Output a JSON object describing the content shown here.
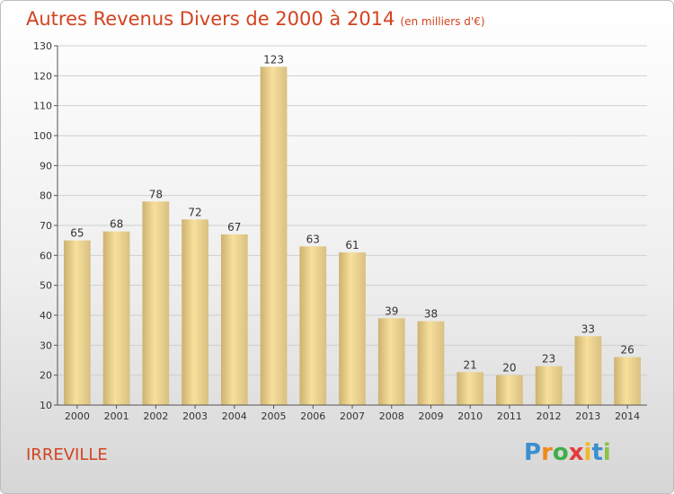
{
  "header": {
    "title": "Autres Revenus Divers de 2000 à 2014",
    "unit": "(en milliers d'€)"
  },
  "footer": {
    "town": "IRREVILLE",
    "logo_letters": [
      "P",
      "r",
      "o",
      "x",
      "i",
      "t",
      "i"
    ],
    "logo_colors": [
      "#3b8fd0",
      "#f08a1c",
      "#3fae49",
      "#e53b3b",
      "#f2b81c",
      "#3b8fd0",
      "#8bc34a"
    ]
  },
  "chart_data": {
    "type": "bar",
    "title": "Autres Revenus Divers de 2000 à 2014",
    "subtitle": "(en milliers d'€)",
    "xlabel": "",
    "ylabel": "",
    "categories": [
      "2000",
      "2001",
      "2002",
      "2003",
      "2004",
      "2005",
      "2006",
      "2007",
      "2008",
      "2009",
      "2010",
      "2011",
      "2012",
      "2013",
      "2014"
    ],
    "values": [
      65,
      68,
      78,
      72,
      67,
      123,
      63,
      61,
      39,
      38,
      21,
      20,
      23,
      33,
      26
    ],
    "ylim": [
      10,
      130
    ],
    "yticks": [
      10,
      20,
      30,
      40,
      50,
      60,
      70,
      80,
      90,
      100,
      110,
      120,
      130
    ],
    "grid": true,
    "colors": {
      "bar_light": "#f7df9c",
      "bar_dark": "#c9ad6b",
      "grid": "#cfcfcf"
    }
  }
}
